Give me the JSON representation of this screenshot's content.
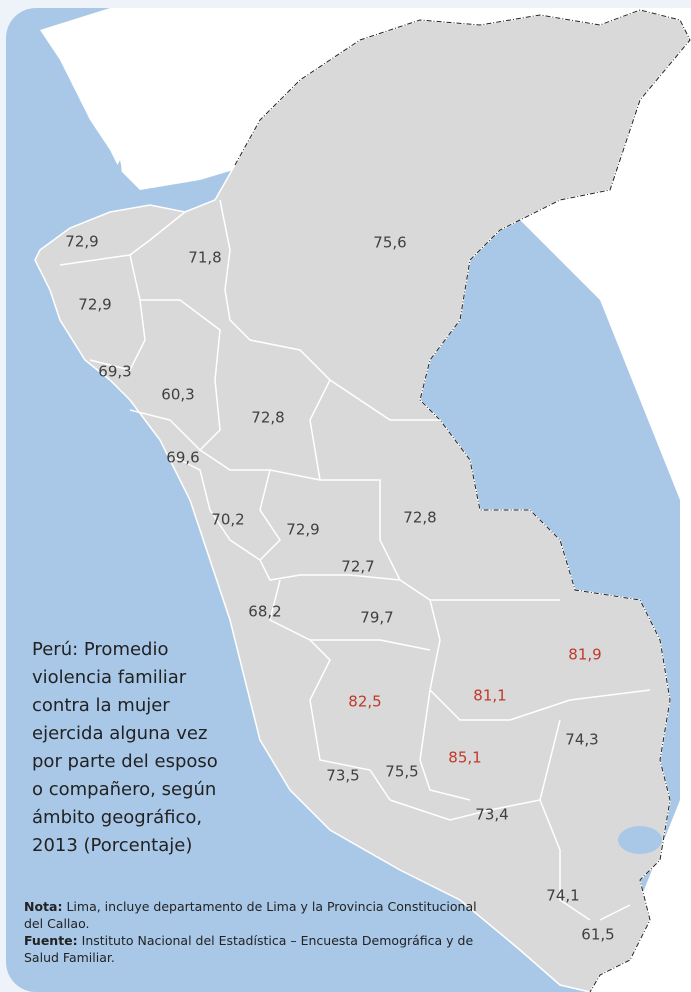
{
  "map": {
    "regions": [
      {
        "label": "72,9"
      },
      {
        "label": "71,8"
      },
      {
        "label": "75,6"
      },
      {
        "label": "72,9"
      },
      {
        "label": "69,3"
      },
      {
        "label": "60,3"
      },
      {
        "label": "72,8"
      },
      {
        "label": "69,6"
      },
      {
        "label": "70,2"
      },
      {
        "label": "72,9"
      },
      {
        "label": "72,8"
      },
      {
        "label": "72,7"
      },
      {
        "label": "68,2"
      },
      {
        "label": "79,7"
      },
      {
        "label": "81,9",
        "highlight": true
      },
      {
        "label": "82,5",
        "highlight": true
      },
      {
        "label": "81,1",
        "highlight": true
      },
      {
        "label": "85,1",
        "highlight": true
      },
      {
        "label": "74,3"
      },
      {
        "label": "73,5"
      },
      {
        "label": "75,5"
      },
      {
        "label": "73,4"
      },
      {
        "label": "74,1"
      },
      {
        "label": "61,5"
      }
    ],
    "label_color": "#404040",
    "highlight_color": "#c0392b"
  },
  "title_lines": [
    "Perú: Promedio",
    "violencia familiar",
    "contra la mujer",
    "ejercida alguna vez",
    "por parte del esposo",
    "o compañero, según",
    "ámbito geográfico,",
    "2013 (Porcentaje)"
  ],
  "note": {
    "label": "Nota:",
    "text": "Lima, incluye departamento de Lima y la Provincia Constitucional del Callao."
  },
  "source": {
    "label": "Fuente:",
    "text": "Instituto Nacional del Estadística – Encuesta Demográfica y de Salud Familiar."
  }
}
